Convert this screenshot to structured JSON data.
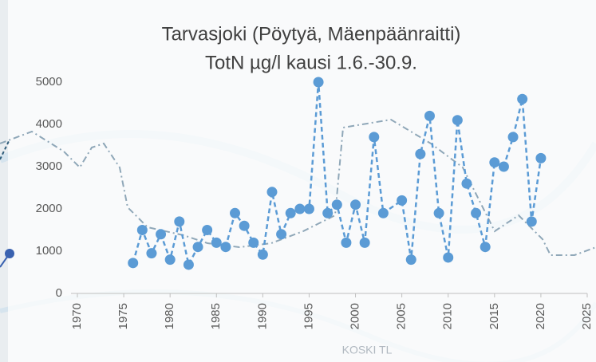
{
  "map_label": "KOSKI TL",
  "chart_data": {
    "type": "line",
    "title": [
      "Tarvasjoki (Pöytyä, Mäenpäänraitti)",
      "TotN µg/l kausi 1.6.-30.9."
    ],
    "x": [
      1976,
      1977,
      1978,
      1979,
      1980,
      1981,
      1982,
      1983,
      1984,
      1985,
      1986,
      1987,
      1988,
      1989,
      1990,
      1991,
      1992,
      1993,
      1994,
      1995,
      1996,
      1997,
      1998,
      1999,
      2000,
      2001,
      2002,
      2003,
      2005,
      2006,
      2007,
      2008,
      2009,
      2010,
      2011,
      2012,
      2013,
      2014,
      2015,
      2016,
      2017,
      2018,
      2019,
      2020
    ],
    "series": [
      {
        "name": "TotN",
        "color": "#5b9bd5",
        "values": [
          720,
          1500,
          950,
          1400,
          800,
          1700,
          680,
          1100,
          1500,
          1200,
          1100,
          1900,
          1600,
          1200,
          920,
          2400,
          1400,
          1900,
          2000,
          2000,
          5000,
          1900,
          2100,
          1200,
          2100,
          1200,
          3700,
          1900,
          2200,
          800,
          3300,
          4200,
          1900,
          850,
          4100,
          2600,
          1900,
          1100,
          3100,
          3000,
          3700,
          4600,
          1700,
          3200
        ]
      }
    ],
    "xlim": [
      1970,
      2025
    ],
    "xticks": [
      1970,
      1975,
      1980,
      1985,
      1990,
      1995,
      2000,
      2005,
      2010,
      2015,
      2020,
      2025
    ],
    "ylim": [
      0,
      5000
    ],
    "yticks": [
      0,
      1000,
      2000,
      3000,
      4000,
      5000
    ],
    "line_style": "dashed",
    "markers": true
  }
}
